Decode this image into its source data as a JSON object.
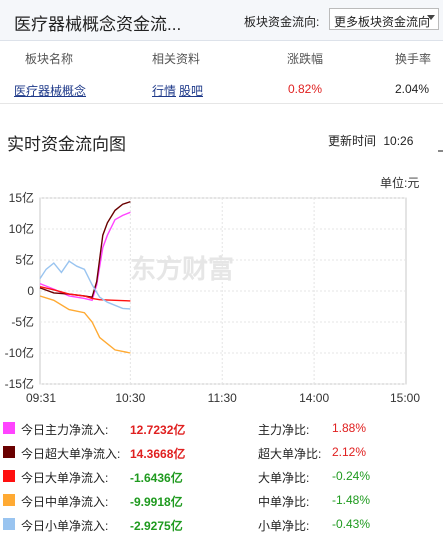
{
  "header": {
    "title": "医疗器械概念资金流...",
    "flow_label": "板块资金流向:",
    "flow_select": "更多板块资金流向"
  },
  "table": {
    "columns": [
      "板块名称",
      "相关资料",
      "涨跌幅",
      "换手率"
    ],
    "row": {
      "name": "医疗器械概念",
      "links": [
        "行情",
        "股吧"
      ],
      "change": "0.82%",
      "turnover": "2.04%"
    }
  },
  "section": {
    "title": "实时资金流向图",
    "update_label": "更新时间",
    "update_time": "10:26",
    "unit": "单位:元"
  },
  "watermark": "东方财富",
  "chart_data": {
    "type": "line",
    "y_ticks": [
      "15亿",
      "10亿",
      "5亿",
      "0",
      "-5亿",
      "-10亿",
      "-15亿"
    ],
    "x_ticks": [
      "09:31",
      "10:30",
      "11:30",
      "14:00",
      "15:00"
    ],
    "ylim": [
      -15,
      15
    ],
    "unit": "亿",
    "series": [
      {
        "name": "今日主力净流入",
        "color": "#ff44ff",
        "x": [
          "09:31",
          "09:40",
          "09:50",
          "10:00",
          "10:05",
          "10:08",
          "10:12",
          "10:15",
          "10:20",
          "10:25",
          "10:30"
        ],
        "values": [
          1.2,
          0.3,
          -0.8,
          -1.2,
          -1.5,
          1.0,
          7.0,
          9.0,
          11.5,
          12.2,
          12.7
        ]
      },
      {
        "name": "今日超大单净流入",
        "color": "#6a0000",
        "x": [
          "09:31",
          "09:40",
          "09:50",
          "10:00",
          "10:05",
          "10:08",
          "10:12",
          "10:15",
          "10:20",
          "10:25",
          "10:30"
        ],
        "values": [
          0.5,
          -0.3,
          -0.5,
          -0.8,
          -1.0,
          1.5,
          9.0,
          11.0,
          13.0,
          14.0,
          14.4
        ]
      },
      {
        "name": "今日大单净流入",
        "color": "#ff1010",
        "x": [
          "09:31",
          "09:40",
          "09:50",
          "10:00",
          "10:05",
          "10:10",
          "10:20",
          "10:30"
        ],
        "values": [
          0.7,
          0.2,
          -0.5,
          -0.8,
          -1.2,
          -1.4,
          -1.5,
          -1.6
        ]
      },
      {
        "name": "今日中单净流入",
        "color": "#ffaa33",
        "x": [
          "09:31",
          "09:40",
          "09:50",
          "10:00",
          "10:05",
          "10:10",
          "10:20",
          "10:30"
        ],
        "values": [
          -0.8,
          -1.5,
          -3.0,
          -3.5,
          -5.0,
          -7.5,
          -9.5,
          -10.0
        ]
      },
      {
        "name": "今日小单净流入",
        "color": "#99c4f0",
        "x": [
          "09:31",
          "09:35",
          "09:40",
          "09:45",
          "09:50",
          "09:55",
          "10:00",
          "10:05",
          "10:10",
          "10:15",
          "10:20",
          "10:25",
          "10:30"
        ],
        "values": [
          2.0,
          3.5,
          4.5,
          3.0,
          4.8,
          4.0,
          3.5,
          1.0,
          -1.0,
          -1.8,
          -2.3,
          -2.8,
          -2.9
        ]
      }
    ]
  },
  "legend": [
    {
      "label": "今日主力净流入:",
      "value": "12.7232亿",
      "ratio_label": "主力净比:",
      "ratio": "1.88%",
      "color": "#ff44ff",
      "tone": "red"
    },
    {
      "label": "今日超大单净流入:",
      "value": "14.3668亿",
      "ratio_label": "超大单净比:",
      "ratio": "2.12%",
      "color": "#6a0000",
      "tone": "red"
    },
    {
      "label": "今日大单净流入:",
      "value": "-1.6436亿",
      "ratio_label": "大单净比:",
      "ratio": "-0.24%",
      "color": "#ff1010",
      "tone": "green"
    },
    {
      "label": "今日中单净流入:",
      "value": "-9.9918亿",
      "ratio_label": "中单净比:",
      "ratio": "-1.48%",
      "color": "#ffaa33",
      "tone": "green"
    },
    {
      "label": "今日小单净流入:",
      "value": "-2.9275亿",
      "ratio_label": "小单净比:",
      "ratio": "-0.43%",
      "color": "#99c4f0",
      "tone": "green"
    }
  ]
}
